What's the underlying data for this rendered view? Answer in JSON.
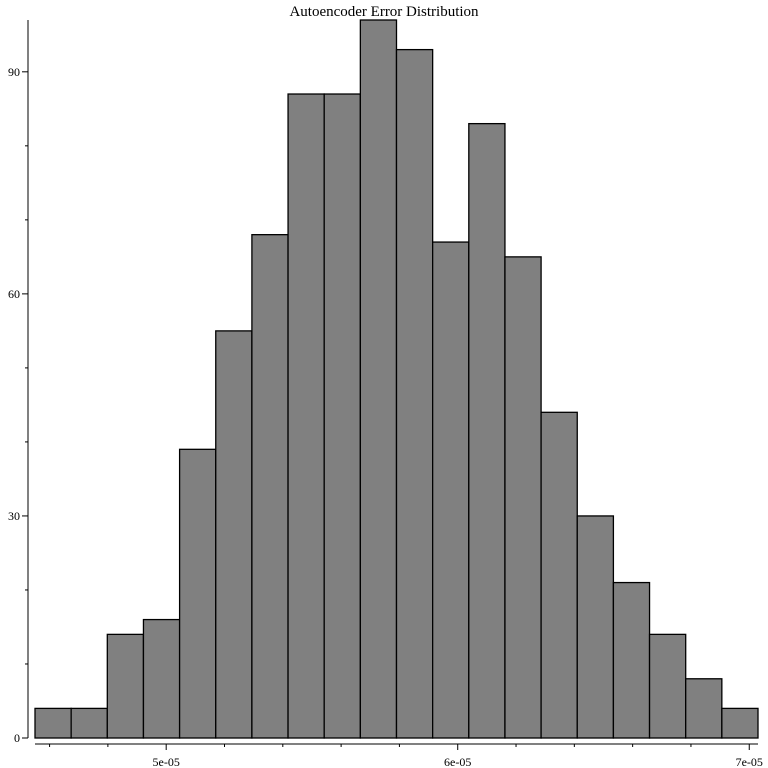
{
  "chart_data": {
    "type": "bar",
    "title": "Autoencoder Error Distribution",
    "xlabel": "",
    "ylabel": "",
    "bin_edges": [
      4.55e-05,
      4.674e-05,
      4.798e-05,
      4.922e-05,
      5.046e-05,
      5.17e-05,
      5.294e-05,
      5.418e-05,
      5.542e-05,
      5.666e-05,
      5.79e-05,
      5.914e-05,
      6.038e-05,
      6.162e-05,
      6.286e-05,
      6.41e-05,
      6.534e-05,
      6.658e-05,
      6.782e-05,
      6.906e-05,
      7.03e-05
    ],
    "values": [
      4,
      4,
      14,
      16,
      39,
      55,
      68,
      87,
      87,
      97,
      93,
      67,
      83,
      65,
      44,
      30,
      21,
      14,
      8,
      4
    ],
    "xlim": [
      4.55e-05,
      7.03e-05
    ],
    "ylim": [
      0,
      97
    ],
    "x_ticks": [
      {
        "value": 5e-05,
        "label": "5e-05"
      },
      {
        "value": 6e-05,
        "label": "6e-05"
      },
      {
        "value": 7e-05,
        "label": "7e-05"
      }
    ],
    "y_ticks": [
      {
        "value": 0,
        "label": "0"
      },
      {
        "value": 30,
        "label": "30"
      },
      {
        "value": 60,
        "label": "60"
      },
      {
        "value": 90,
        "label": "90"
      }
    ],
    "grid": false,
    "colors": {
      "bar_fill": "#808080",
      "bar_stroke": "#000000"
    }
  }
}
